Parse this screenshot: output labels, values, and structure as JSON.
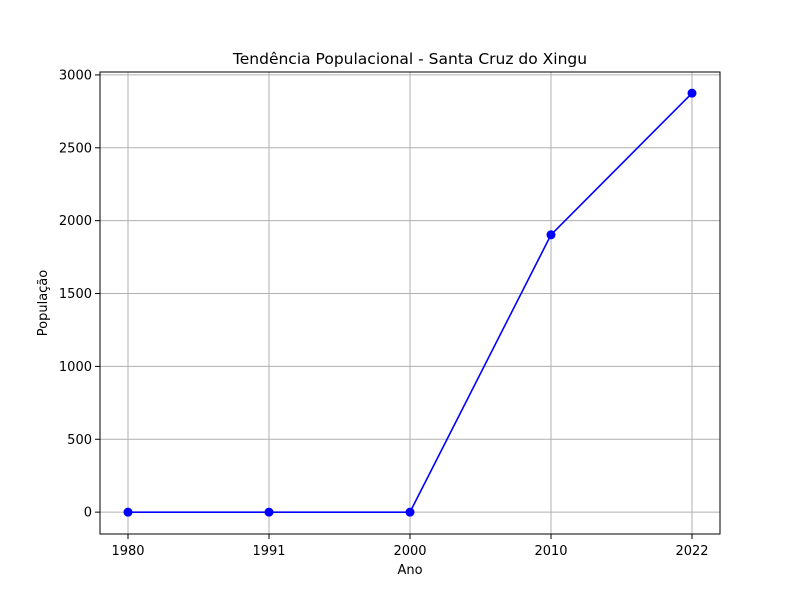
{
  "chart_data": {
    "type": "line",
    "title": "Tendência Populacional - Santa Cruz do Xingu",
    "xlabel": "Ano",
    "ylabel": "População",
    "categories": [
      "1980",
      "1991",
      "2000",
      "2010",
      "2022"
    ],
    "series": [
      {
        "values": [
          0,
          0,
          0,
          1903,
          2875
        ],
        "color": "#0000ff",
        "marker": "circle"
      }
    ],
    "ylim": [
      -150,
      3020
    ],
    "yticks": [
      0,
      500,
      1000,
      1500,
      2000,
      2500,
      3000
    ],
    "grid": true
  }
}
